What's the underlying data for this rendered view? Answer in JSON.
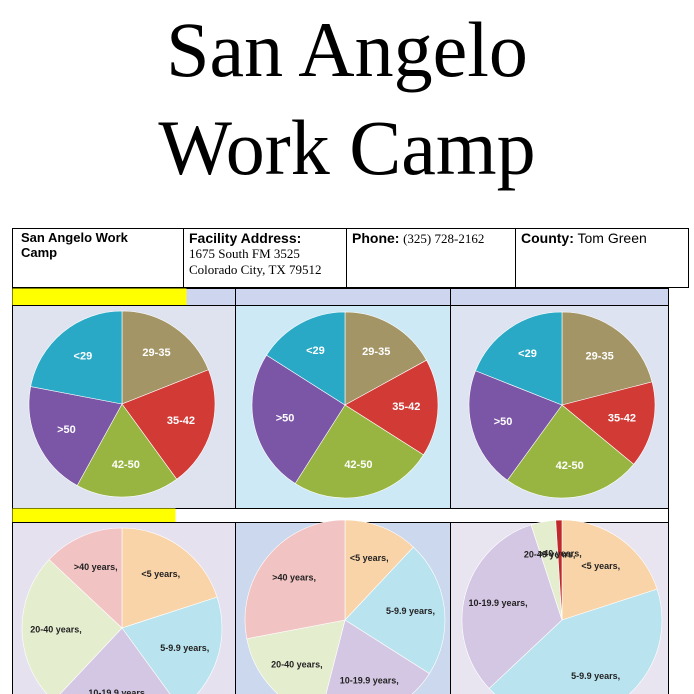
{
  "header": {
    "title_line1": "San Angelo",
    "title_line2": "Work Camp"
  },
  "facility": {
    "name": "San Angelo Work Camp",
    "address_label": "Facility Address:",
    "address_line1": "1675 South FM 3525",
    "address_line2": "Colorado City, TX 79512",
    "phone_label": "Phone:",
    "phone": "(325) 728-2162",
    "county_label": "County:",
    "county": "Tom Green"
  },
  "chart_data": [
    {
      "type": "pie",
      "categories": [
        "29-35",
        "35-42",
        "42-50",
        ">50",
        "<29"
      ],
      "values": [
        19,
        21,
        18,
        20,
        22
      ],
      "colors": [
        "#a39565",
        "#d23a36",
        "#98b541",
        "#7b55a6",
        "#2aa9c6"
      ]
    },
    {
      "type": "pie",
      "categories": [
        "29-35",
        "35-42",
        "42-50",
        ">50",
        "<29"
      ],
      "values": [
        17,
        17,
        25,
        25,
        16
      ],
      "colors": [
        "#a39565",
        "#d23a36",
        "#98b541",
        "#7b55a6",
        "#2aa9c6"
      ]
    },
    {
      "type": "pie",
      "categories": [
        "29-35",
        "35-42",
        "42-50",
        ">50",
        "<29"
      ],
      "values": [
        21,
        15,
        24,
        21,
        19
      ],
      "colors": [
        "#a39565",
        "#d23a36",
        "#98b541",
        "#7b55a6",
        "#2aa9c6"
      ]
    },
    {
      "type": "pie",
      "categories": [
        "<5 years,",
        "5-9.9 years,",
        "10-19.9 years,",
        "20-40 years,",
        ">40 years,"
      ],
      "values": [
        20,
        20,
        22,
        25,
        13
      ],
      "colors": [
        "#f9d4a9",
        "#b9e3ee",
        "#d4c7e3",
        "#e5edcf",
        "#f2c3c3"
      ]
    },
    {
      "type": "pie",
      "categories": [
        "<5 years,",
        "5-9.9 years,",
        "10-19.9 years,",
        "20-40 years,",
        ">40 years,"
      ],
      "values": [
        12,
        22,
        20,
        18,
        28
      ],
      "colors": [
        "#f9d4a9",
        "#b9e3ee",
        "#d4c7e3",
        "#e5edcf",
        "#f2c3c3"
      ]
    },
    {
      "type": "pie",
      "categories": [
        "<5 years,",
        "5-9.9 years,",
        "10-19.9 years,",
        "20-40 years,",
        ">40 years,"
      ],
      "values": [
        20,
        43,
        32,
        4,
        1
      ],
      "colors": [
        "#f9d4a9",
        "#b9e3ee",
        "#d4c7e3",
        "#e5edcf",
        "#c0282b"
      ]
    }
  ]
}
